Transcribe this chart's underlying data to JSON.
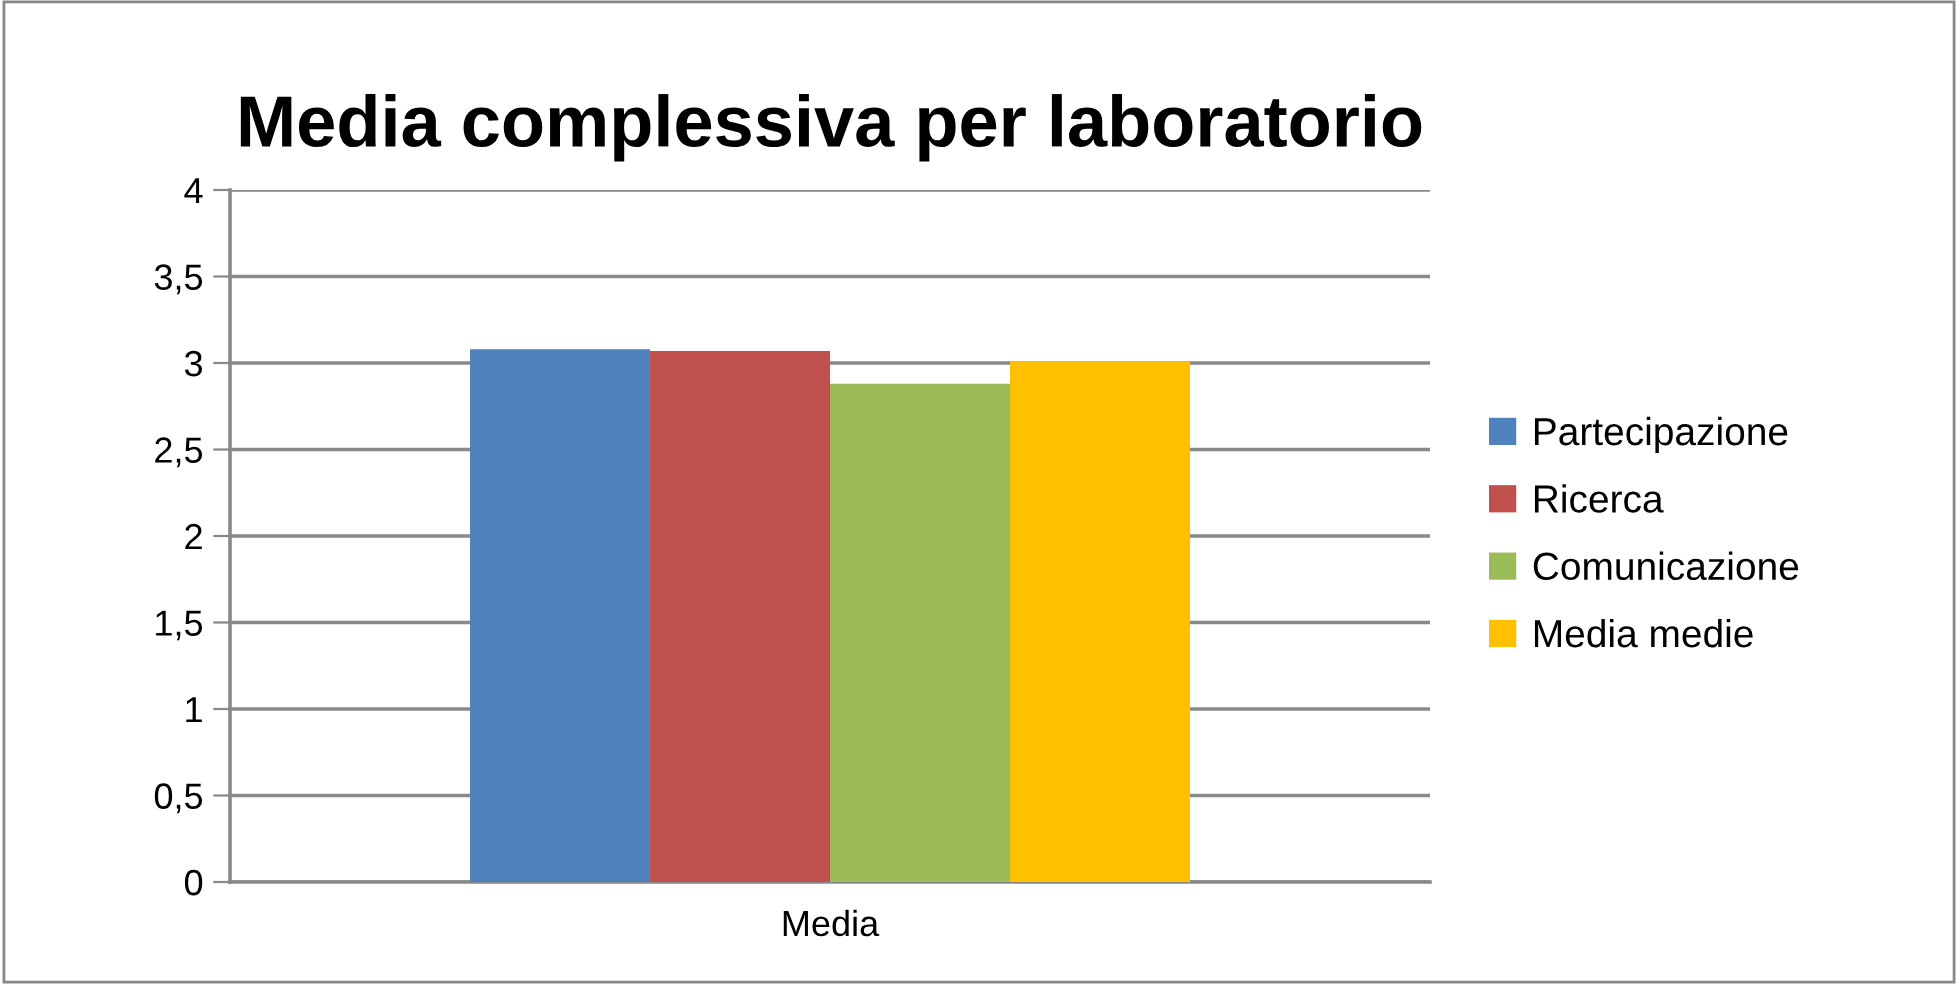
{
  "chart_data": {
    "type": "bar",
    "title": "Media complessiva per laboratorio",
    "categories": [
      "Media"
    ],
    "series": [
      {
        "name": "Partecipazione",
        "color": "#4f81bd",
        "values": [
          3.08
        ]
      },
      {
        "name": "Ricerca",
        "color": "#c0504d",
        "values": [
          3.07
        ]
      },
      {
        "name": "Comunicazione",
        "color": "#9bbb59",
        "values": [
          2.88
        ]
      },
      {
        "name": "Media medie",
        "color": "#ffc000",
        "values": [
          3.01
        ]
      }
    ],
    "ylim": [
      0,
      4
    ],
    "yticks": [
      0,
      {
        "value": 0.5,
        "label": "0,5"
      },
      1,
      {
        "value": 1.5,
        "label": "1,5"
      },
      2,
      {
        "value": 2.5,
        "label": "2,5"
      },
      3,
      {
        "value": 3.5,
        "label": "3,5"
      },
      4
    ],
    "grid": "y",
    "legend": "right"
  }
}
